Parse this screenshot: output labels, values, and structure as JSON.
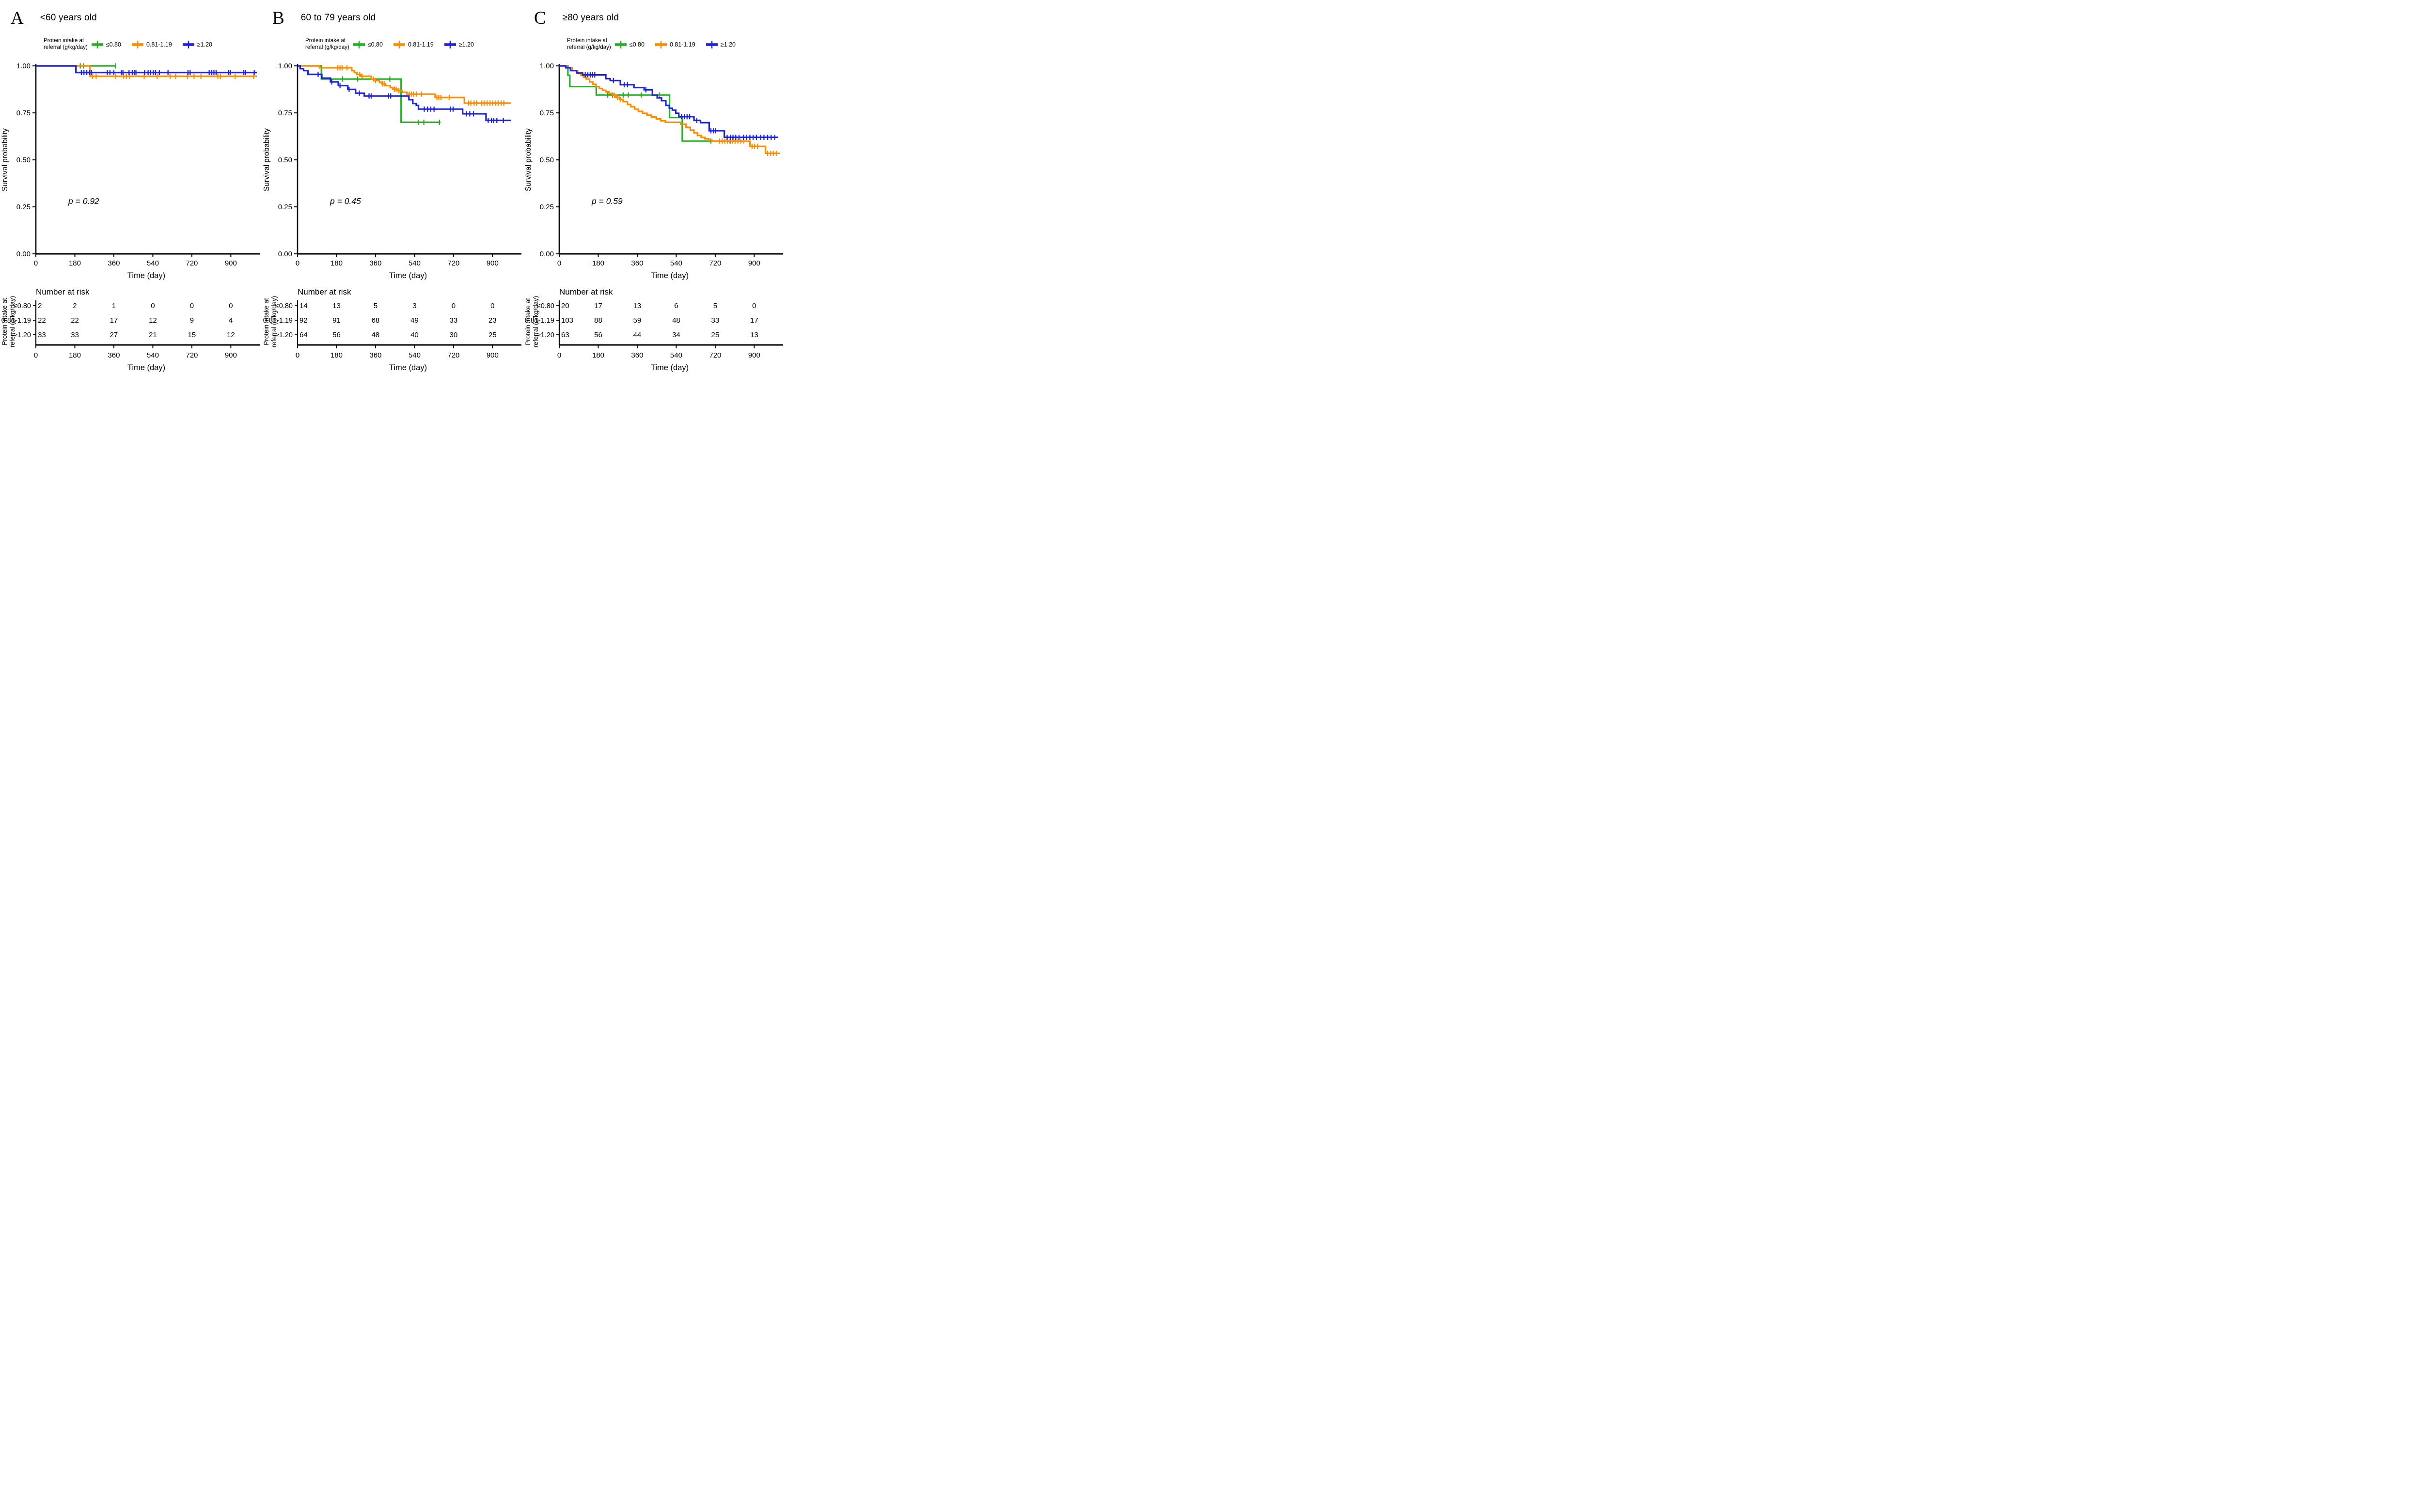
{
  "shared": {
    "ylabel": "Survival probability",
    "xlabel": "Time (day)",
    "risk_header": "Number at risk",
    "legend_title": [
      "Protein intake at",
      "referral (g/kg/day)"
    ],
    "risk_axis_label": [
      "Protein intake at",
      "referral (g/kg/day)"
    ],
    "x_ticks": [
      0,
      180,
      360,
      540,
      720,
      900
    ],
    "x_max": 1020,
    "y_tick_labels": [
      "1.00",
      "0.75",
      "0.50",
      "0.25",
      "0.00"
    ],
    "y_tick_values": [
      1,
      0.75,
      0.5,
      0.25,
      0
    ],
    "groups": [
      {
        "label": "≤0.80",
        "color": "#22b122"
      },
      {
        "label": "0.81-1.19",
        "color": "#ff8c00"
      },
      {
        "label": "≥1.20",
        "color": "#1d21d8"
      }
    ]
  },
  "chart_data": [
    {
      "type": "line",
      "subtype": "kaplan-meier-step",
      "panel_label": "A",
      "title": "<60 years old",
      "p_label": "p = 0.92",
      "xlabel": "Time (day)",
      "ylabel": "Survival probability",
      "xlim": [
        0,
        1020
      ],
      "ylim": [
        0,
        1
      ],
      "series": [
        {
          "name": "≤0.80",
          "steps": [
            [
              0,
              1
            ],
            [
              370,
              1
            ]
          ],
          "censors": [
            205,
            220,
            368
          ]
        },
        {
          "name": "0.81-1.19",
          "steps": [
            [
              0,
              1
            ],
            [
              250,
              0.945
            ],
            [
              1020,
              0.945
            ]
          ],
          "censors": [
            262,
            278,
            368,
            405,
            418,
            432,
            500,
            560,
            620,
            645,
            700,
            730,
            762,
            840,
            852,
            920,
            1005
          ]
        },
        {
          "name": "≥1.20",
          "steps": [
            [
              0,
              1
            ],
            [
              185,
              0.965
            ],
            [
              1020,
              0.965
            ]
          ],
          "censors": [
            210,
            222,
            235,
            248,
            256,
            330,
            342,
            360,
            395,
            402,
            430,
            445,
            455,
            462,
            502,
            518,
            530,
            542,
            552,
            570,
            610,
            702,
            712,
            800,
            812,
            822,
            832,
            890,
            897,
            960,
            968,
            1008
          ]
        }
      ],
      "risk_table": [
        {
          "group": "≤0.80",
          "counts": [
            2,
            2,
            1,
            0,
            0,
            0
          ]
        },
        {
          "group": "0.81-1.19",
          "counts": [
            22,
            22,
            17,
            12,
            9,
            4
          ]
        },
        {
          "group": "≥1.20",
          "counts": [
            33,
            33,
            27,
            21,
            15,
            12
          ]
        }
      ]
    },
    {
      "type": "line",
      "subtype": "kaplan-meier-step",
      "panel_label": "B",
      "title": "60 to 79 years old",
      "p_label": "p = 0.45",
      "xlabel": "Time (day)",
      "ylabel": "Survival probability",
      "xlim": [
        0,
        1020
      ],
      "ylim": [
        0,
        1
      ],
      "series": [
        {
          "name": "≤0.80",
          "steps": [
            [
              0,
              1
            ],
            [
              110,
              0.93
            ],
            [
              478,
              0.7
            ],
            [
              660,
              0.7
            ]
          ],
          "censors": [
            208,
            277,
            426,
            557,
            583,
            655
          ]
        },
        {
          "name": "0.81-1.19",
          "steps": [
            [
              0,
              1
            ],
            [
              101,
              0.99
            ],
            [
              250,
              0.975
            ],
            [
              262,
              0.965
            ],
            [
              274,
              0.955
            ],
            [
              292,
              0.945
            ],
            [
              340,
              0.93
            ],
            [
              352,
              0.922
            ],
            [
              378,
              0.913
            ],
            [
              388,
              0.905
            ],
            [
              406,
              0.895
            ],
            [
              428,
              0.885
            ],
            [
              440,
              0.876
            ],
            [
              462,
              0.868
            ],
            [
              484,
              0.86
            ],
            [
              505,
              0.85
            ],
            [
              635,
              0.832
            ],
            [
              770,
              0.802
            ],
            [
              985,
              0.802
            ]
          ],
          "censors": [
            186,
            196,
            206,
            228,
            287,
            298,
            350,
            360,
            392,
            400,
            447,
            455,
            468,
            515,
            525,
            535,
            548,
            572,
            643,
            652,
            662,
            700,
            790,
            800,
            815,
            826,
            850,
            862,
            875,
            888,
            900,
            915,
            926,
            940,
            952
          ]
        },
        {
          "name": "≥1.20",
          "steps": [
            [
              0,
              1
            ],
            [
              12,
              0.985
            ],
            [
              28,
              0.975
            ],
            [
              48,
              0.955
            ],
            [
              112,
              0.935
            ],
            [
              152,
              0.915
            ],
            [
              188,
              0.895
            ],
            [
              232,
              0.875
            ],
            [
              268,
              0.855
            ],
            [
              308,
              0.84
            ],
            [
              514,
              0.82
            ],
            [
              532,
              0.8
            ],
            [
              548,
              0.79
            ],
            [
              558,
              0.77
            ],
            [
              762,
              0.745
            ],
            [
              870,
              0.71
            ],
            [
              985,
              0.71
            ]
          ],
          "censors": [
            95,
            158,
            196,
            238,
            285,
            330,
            340,
            420,
            430,
            585,
            600,
            615,
            630,
            705,
            718,
            780,
            795,
            812,
            880,
            895,
            905,
            920,
            950
          ]
        }
      ],
      "risk_table": [
        {
          "group": "≤0.80",
          "counts": [
            14,
            13,
            5,
            3,
            0,
            0
          ]
        },
        {
          "group": "0.81-1.19",
          "counts": [
            92,
            91,
            68,
            49,
            33,
            23
          ]
        },
        {
          "group": "≥1.20",
          "counts": [
            64,
            56,
            48,
            40,
            30,
            25
          ]
        }
      ]
    },
    {
      "type": "line",
      "subtype": "kaplan-meier-step",
      "panel_label": "C",
      "title": "≥80 years old",
      "p_label": "p = 0.59",
      "xlabel": "Time (day)",
      "ylabel": "Survival probability",
      "xlim": [
        0,
        1020
      ],
      "ylim": [
        0,
        1
      ],
      "series": [
        {
          "name": "≤0.80",
          "steps": [
            [
              0,
              1
            ],
            [
              40,
              0.95
            ],
            [
              49,
              0.89
            ],
            [
              171,
              0.845
            ],
            [
              509,
              0.725
            ],
            [
              568,
              0.6
            ],
            [
              838,
              0.6
            ]
          ],
          "censors": [
            224,
            246,
            295,
            319,
            379,
            462,
            700,
            790
          ]
        },
        {
          "name": "0.81-1.19",
          "steps": [
            [
              0,
              1
            ],
            [
              35,
              0.99
            ],
            [
              60,
              0.975
            ],
            [
              85,
              0.96
            ],
            [
              100,
              0.95
            ],
            [
              112,
              0.94
            ],
            [
              125,
              0.93
            ],
            [
              140,
              0.915
            ],
            [
              155,
              0.902
            ],
            [
              170,
              0.89
            ],
            [
              185,
              0.88
            ],
            [
              200,
              0.87
            ],
            [
              215,
              0.862
            ],
            [
              230,
              0.853
            ],
            [
              248,
              0.843
            ],
            [
              262,
              0.833
            ],
            [
              278,
              0.822
            ],
            [
              295,
              0.81
            ],
            [
              315,
              0.795
            ],
            [
              330,
              0.783
            ],
            [
              348,
              0.77
            ],
            [
              365,
              0.758
            ],
            [
              385,
              0.748
            ],
            [
              405,
              0.738
            ],
            [
              425,
              0.728
            ],
            [
              448,
              0.718
            ],
            [
              468,
              0.708
            ],
            [
              490,
              0.7
            ],
            [
              560,
              0.69
            ],
            [
              585,
              0.673
            ],
            [
              605,
              0.658
            ],
            [
              622,
              0.644
            ],
            [
              638,
              0.63
            ],
            [
              655,
              0.62
            ],
            [
              672,
              0.612
            ],
            [
              690,
              0.605
            ],
            [
              705,
              0.6
            ],
            [
              880,
              0.572
            ],
            [
              952,
              0.535
            ],
            [
              1020,
              0.535
            ]
          ],
          "censors": [
            255,
            268,
            282,
            740,
            752,
            764,
            776,
            788,
            800,
            812,
            825,
            838,
            852,
            890,
            902,
            915,
            962,
            976,
            988,
            1002
          ]
        },
        {
          "name": "≥1.20",
          "steps": [
            [
              0,
              1
            ],
            [
              30,
              0.99
            ],
            [
              52,
              0.975
            ],
            [
              80,
              0.962
            ],
            [
              108,
              0.952
            ],
            [
              215,
              0.932
            ],
            [
              235,
              0.922
            ],
            [
              282,
              0.9
            ],
            [
              345,
              0.885
            ],
            [
              392,
              0.873
            ],
            [
              430,
              0.845
            ],
            [
              452,
              0.83
            ],
            [
              472,
              0.815
            ],
            [
              492,
              0.79
            ],
            [
              508,
              0.775
            ],
            [
              522,
              0.765
            ],
            [
              538,
              0.748
            ],
            [
              552,
              0.73
            ],
            [
              622,
              0.71
            ],
            [
              652,
              0.698
            ],
            [
              692,
              0.655
            ],
            [
              762,
              0.62
            ],
            [
              1010,
              0.62
            ]
          ],
          "censors": [
            120,
            132,
            143,
            154,
            164,
            250,
            300,
            315,
            400,
            565,
            578,
            590,
            602,
            635,
            700,
            712,
            722,
            775,
            790,
            802,
            815,
            830,
            850,
            865,
            880,
            895,
            910,
            930,
            945,
            962,
            978,
            995
          ]
        }
      ],
      "risk_table": [
        {
          "group": "≤0.80",
          "counts": [
            20,
            17,
            13,
            6,
            5,
            0
          ]
        },
        {
          "group": "0.81-1.19",
          "counts": [
            103,
            88,
            59,
            48,
            33,
            17
          ]
        },
        {
          "group": "≥1.20",
          "counts": [
            63,
            56,
            44,
            34,
            25,
            13
          ]
        }
      ]
    }
  ]
}
